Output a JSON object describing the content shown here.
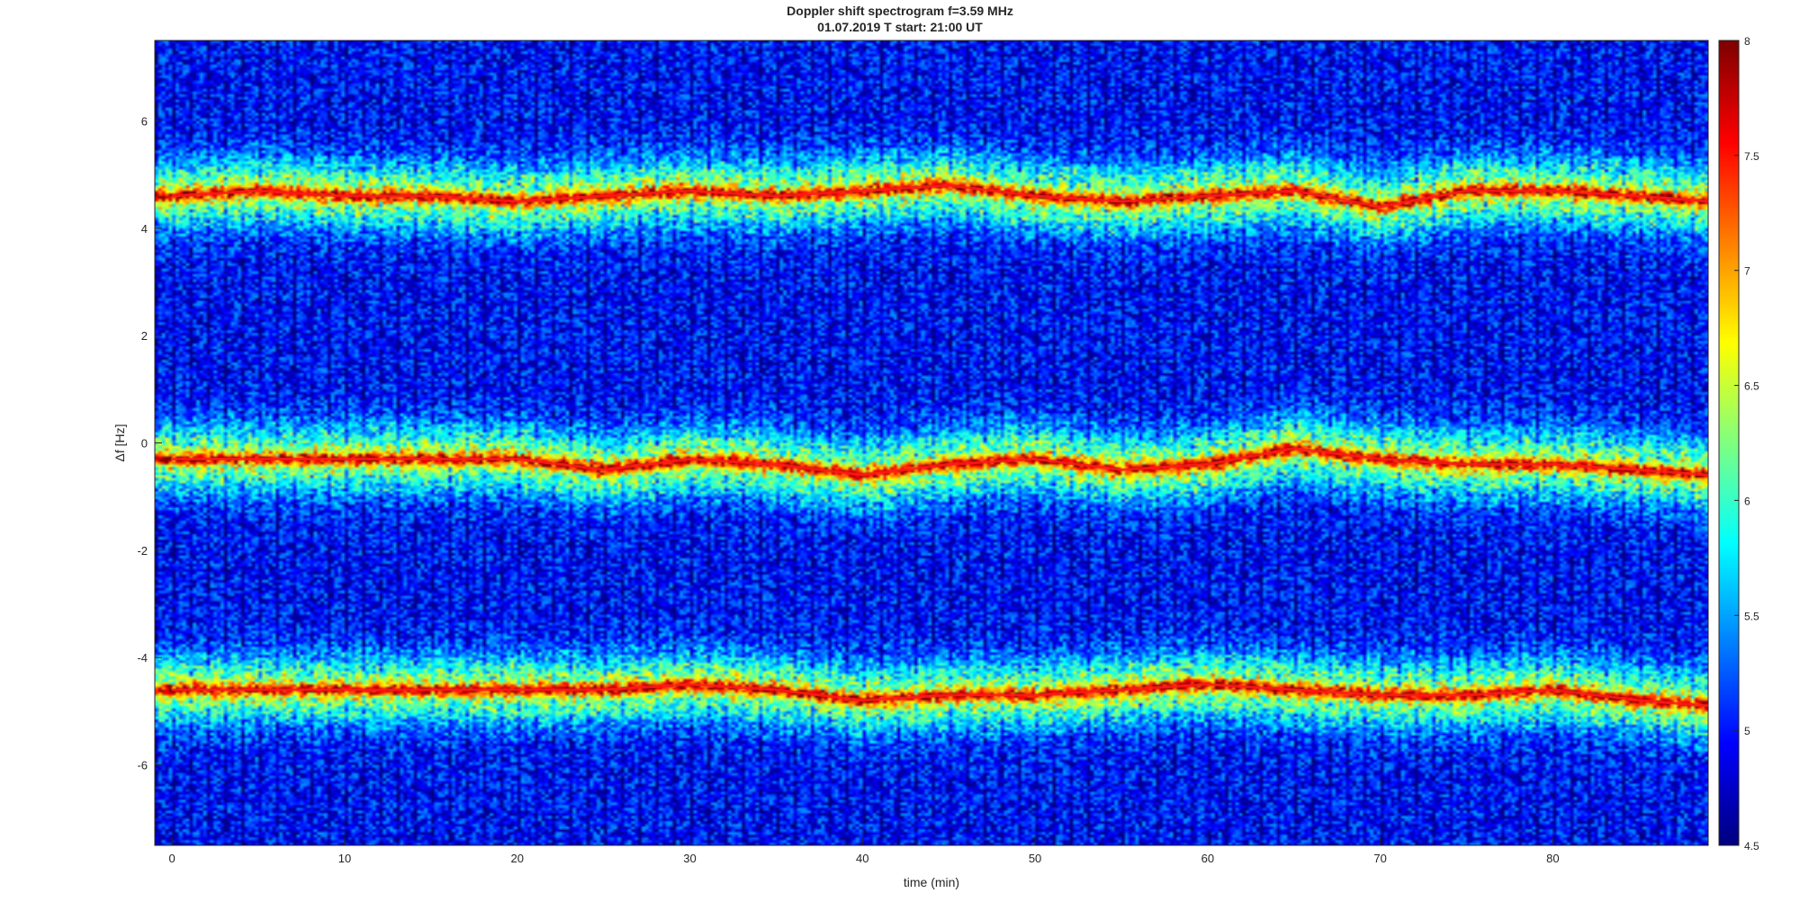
{
  "chart_data": {
    "type": "heatmap",
    "title": "Doppler shift spectrogram f=3.59 MHz",
    "subtitle": "01.07.2019   T start: 21:00 UT",
    "xlabel": "time (min)",
    "ylabel": "Δf [Hz]",
    "xlim": [
      -1,
      89
    ],
    "ylim": [
      -7.5,
      7.5
    ],
    "x_ticks": [
      0,
      10,
      20,
      30,
      40,
      50,
      60,
      70,
      80
    ],
    "y_ticks": [
      -6,
      -4,
      -2,
      0,
      2,
      4,
      6
    ],
    "colormap": "jet",
    "clim": [
      4.5,
      8
    ],
    "colorbar_ticks": [
      4.5,
      5,
      5.5,
      6,
      6.5,
      7,
      7.5,
      8
    ],
    "series": [
      {
        "x": [
          0,
          5,
          10,
          15,
          20,
          25,
          30,
          35,
          40,
          45,
          50,
          55,
          60,
          65,
          70,
          75,
          80,
          85,
          89
        ],
        "y": [
          4.6,
          4.7,
          4.6,
          4.6,
          4.5,
          4.6,
          4.7,
          4.6,
          4.7,
          4.8,
          4.6,
          4.5,
          4.6,
          4.7,
          4.4,
          4.7,
          4.7,
          4.6,
          4.5
        ]
      },
      {
        "x": [
          0,
          5,
          10,
          15,
          20,
          25,
          30,
          35,
          40,
          45,
          50,
          55,
          60,
          65,
          70,
          75,
          80,
          85,
          89
        ],
        "y": [
          -0.3,
          -0.3,
          -0.3,
          -0.3,
          -0.3,
          -0.5,
          -0.3,
          -0.4,
          -0.6,
          -0.4,
          -0.3,
          -0.5,
          -0.4,
          -0.1,
          -0.3,
          -0.4,
          -0.4,
          -0.5,
          -0.6
        ]
      },
      {
        "x": [
          0,
          5,
          10,
          15,
          20,
          25,
          30,
          35,
          40,
          45,
          50,
          55,
          60,
          65,
          70,
          75,
          80,
          85,
          89
        ],
        "y": [
          -4.6,
          -4.6,
          -4.6,
          -4.6,
          -4.6,
          -4.6,
          -4.5,
          -4.6,
          -4.8,
          -4.7,
          -4.7,
          -4.6,
          -4.5,
          -4.6,
          -4.7,
          -4.7,
          -4.6,
          -4.8,
          -4.9
        ]
      }
    ],
    "background_level": 5.0,
    "band_width_hz": 0.35,
    "band_peak_level": 7.8
  }
}
